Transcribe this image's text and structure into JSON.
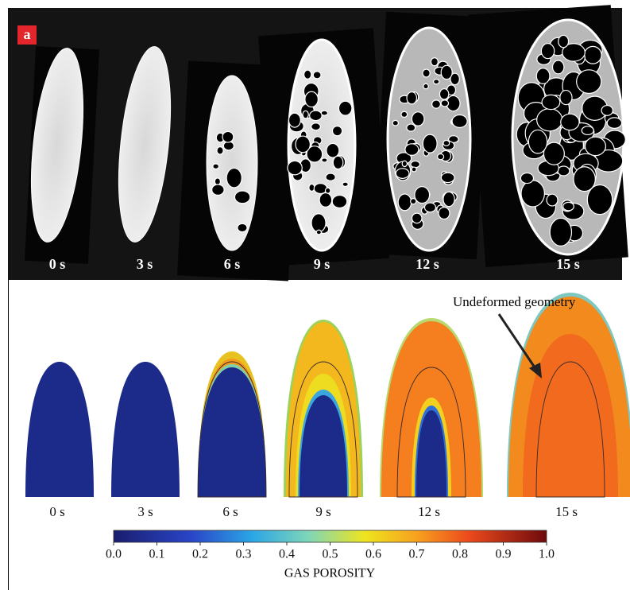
{
  "panel_label": "a",
  "ct_panel": {
    "time_labels": [
      "0 s",
      "3 s",
      "6 s",
      "9 s",
      "12 s",
      "15 s"
    ]
  },
  "simulation_panel": {
    "time_labels": [
      "0 s",
      "3 s",
      "6 s",
      "9 s",
      "12 s",
      "15 s"
    ],
    "annotation": "Undeformed geometry"
  },
  "colorbar": {
    "label": "GAS POROSITY",
    "lim": [
      0,
      1
    ],
    "ticks": [
      {
        "value": 0,
        "label": "0.0"
      },
      0.1,
      0.2,
      0.3,
      0.4,
      0.5,
      0.6,
      0.7,
      0.8,
      0.9,
      {
        "value": 1,
        "label": "1.0"
      }
    ]
  }
}
